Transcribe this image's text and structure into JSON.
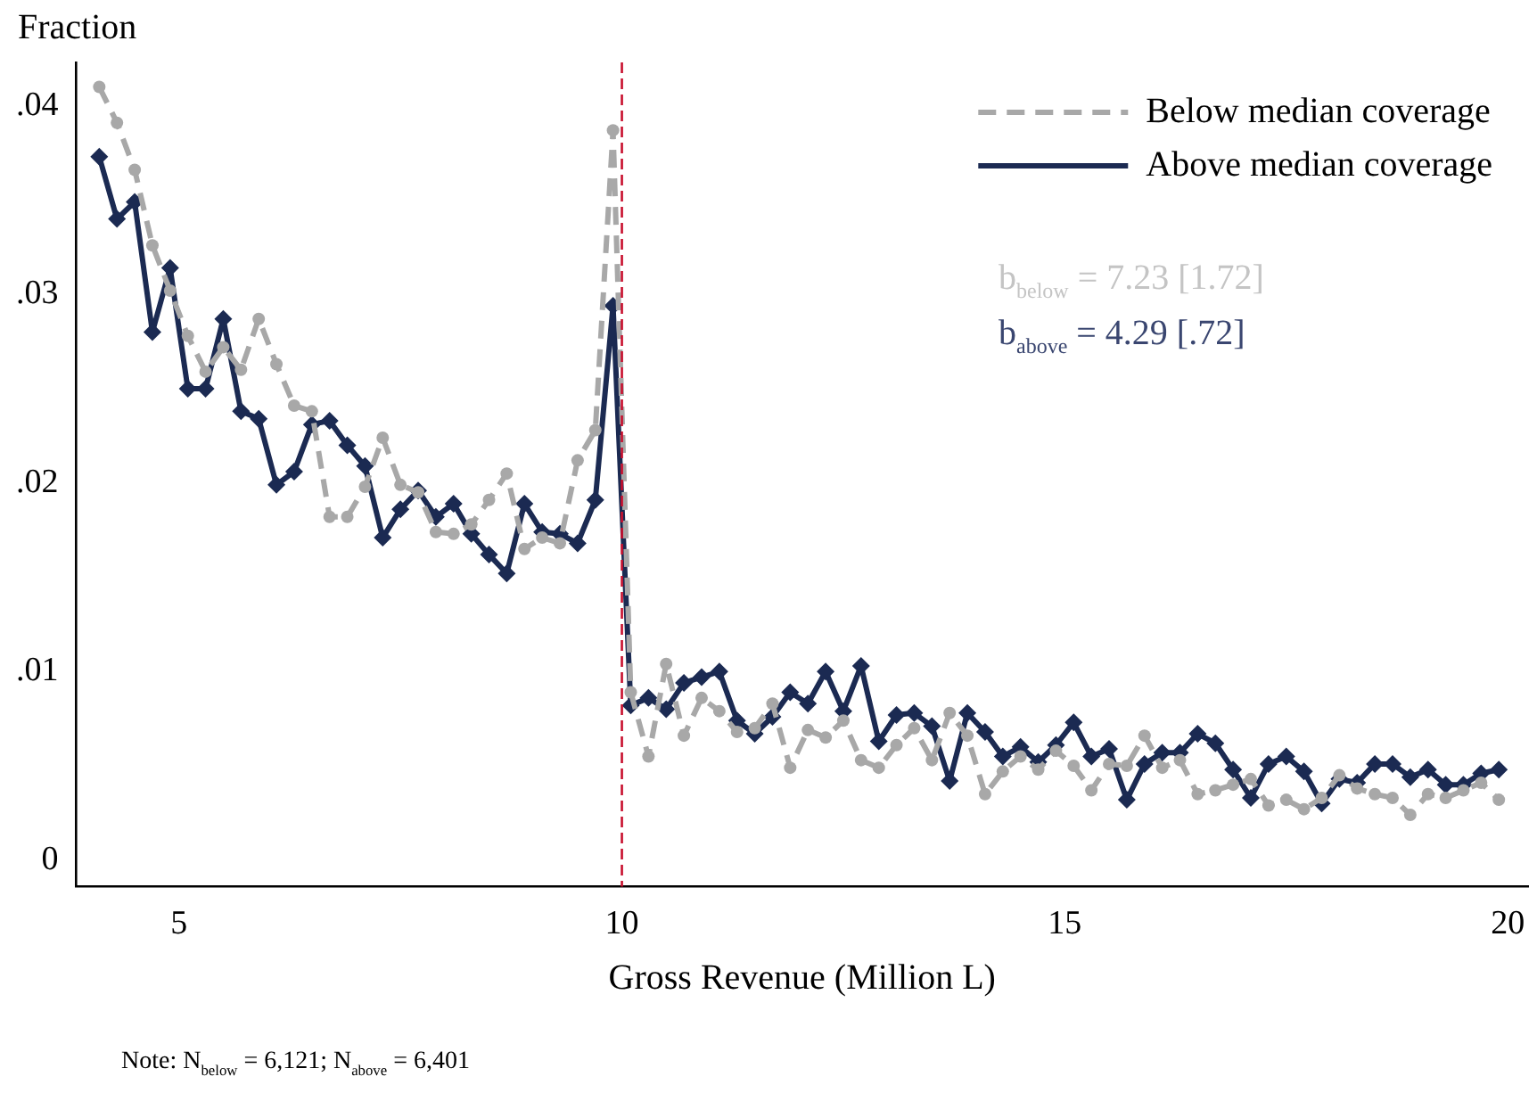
{
  "chart_data": {
    "type": "line",
    "ylabel": "Fraction",
    "xlabel": "Gross Revenue (Million L)",
    "x": [
      4.1,
      4.3,
      4.5,
      4.7,
      4.9,
      5.1,
      5.3,
      5.5,
      5.7,
      5.9,
      6.1,
      6.3,
      6.5,
      6.7,
      6.9,
      7.1,
      7.3,
      7.5,
      7.7,
      7.9,
      8.1,
      8.3,
      8.5,
      8.7,
      8.9,
      9.1,
      9.3,
      9.5,
      9.7,
      9.9,
      10.1,
      10.3,
      10.5,
      10.7,
      10.9,
      11.1,
      11.3,
      11.5,
      11.7,
      11.9,
      12.1,
      12.3,
      12.5,
      12.7,
      12.9,
      13.1,
      13.3,
      13.5,
      13.7,
      13.9,
      14.1,
      14.3,
      14.5,
      14.7,
      14.9,
      15.1,
      15.3,
      15.5,
      15.7,
      15.9,
      16.1,
      16.3,
      16.5,
      16.7,
      16.9,
      17.1,
      17.3,
      17.5,
      17.7,
      17.9,
      18.1,
      18.3,
      18.5,
      18.7,
      18.9,
      19.1,
      19.3,
      19.5,
      19.7,
      19.9
    ],
    "series": [
      {
        "name": "Below median coverage",
        "color": "#a8a8a8",
        "marker": "circle",
        "line_style": "dashed",
        "values": [
          0.041,
          0.0391,
          0.0366,
          0.0326,
          0.0302,
          0.0278,
          0.0259,
          0.0272,
          0.026,
          0.0287,
          0.0263,
          0.0241,
          0.0238,
          0.0182,
          0.0182,
          0.0198,
          0.0224,
          0.0199,
          0.0195,
          0.0174,
          0.0173,
          0.0178,
          0.0191,
          0.0205,
          0.0165,
          0.0171,
          0.0168,
          0.0212,
          0.0228,
          0.0387,
          0.0089,
          0.0055,
          0.0104,
          0.0066,
          0.0086,
          0.0079,
          0.0068,
          0.007,
          0.0083,
          0.0049,
          0.0069,
          0.0065,
          0.0074,
          0.0053,
          0.0049,
          0.0061,
          0.007,
          0.0053,
          0.0078,
          0.0066,
          0.0035,
          0.0047,
          0.0055,
          0.0048,
          0.0058,
          0.005,
          0.0037,
          0.0051,
          0.005,
          0.0066,
          0.0049,
          0.0053,
          0.0035,
          0.0037,
          0.004,
          0.0043,
          0.0029,
          0.0032,
          0.0027,
          0.0033,
          0.0045,
          0.0038,
          0.0035,
          0.0033,
          0.0024,
          0.0035,
          0.0033,
          0.0037,
          0.0041,
          0.0032
        ]
      },
      {
        "name": "Above median coverage",
        "color": "#1b2a52",
        "marker": "diamond",
        "line_style": "solid",
        "values": [
          0.0373,
          0.034,
          0.0349,
          0.028,
          0.0314,
          0.025,
          0.025,
          0.0287,
          0.0238,
          0.0234,
          0.0199,
          0.0206,
          0.0231,
          0.0233,
          0.022,
          0.0209,
          0.0171,
          0.0186,
          0.0196,
          0.0182,
          0.0189,
          0.0173,
          0.0162,
          0.0152,
          0.0189,
          0.0174,
          0.0173,
          0.0168,
          0.0191,
          0.0294,
          0.0082,
          0.0086,
          0.008,
          0.0094,
          0.0097,
          0.01,
          0.0074,
          0.0067,
          0.0076,
          0.0089,
          0.0083,
          0.01,
          0.0079,
          0.0103,
          0.0063,
          0.0077,
          0.0078,
          0.0071,
          0.0042,
          0.0078,
          0.0068,
          0.0055,
          0.006,
          0.0052,
          0.0061,
          0.0073,
          0.0055,
          0.0059,
          0.0032,
          0.0051,
          0.0057,
          0.0057,
          0.0067,
          0.0062,
          0.0048,
          0.0033,
          0.0051,
          0.0055,
          0.0047,
          0.003,
          0.0043,
          0.0041,
          0.0051,
          0.0051,
          0.0044,
          0.0048,
          0.004,
          0.004,
          0.0046,
          0.0048
        ]
      }
    ],
    "xlim": [
      3.84,
      20.23
    ],
    "xticks": [
      5,
      10,
      15,
      20
    ],
    "ylim": [
      -0.0014,
      0.0423
    ],
    "yticks": [
      0,
      {
        "value": 0.01,
        "label": ".01"
      },
      {
        "value": 0.02,
        "label": ".02"
      },
      {
        "value": 0.03,
        "label": ".03"
      },
      {
        "value": 0.04,
        "label": ".04"
      }
    ],
    "ref_lines": [
      {
        "axis": "x",
        "value": 10,
        "color": "#c8102e",
        "line_style": "dashed"
      }
    ],
    "annotations": [
      "b$_{below}$ = 7.23 [1.72]",
      "b$_{above}$ = 4.29 [.72]",
      "Note: N$_{below}$ =  6,121; N$_{above}$ =  6,401"
    ],
    "legend": "top right",
    "grid": false
  }
}
